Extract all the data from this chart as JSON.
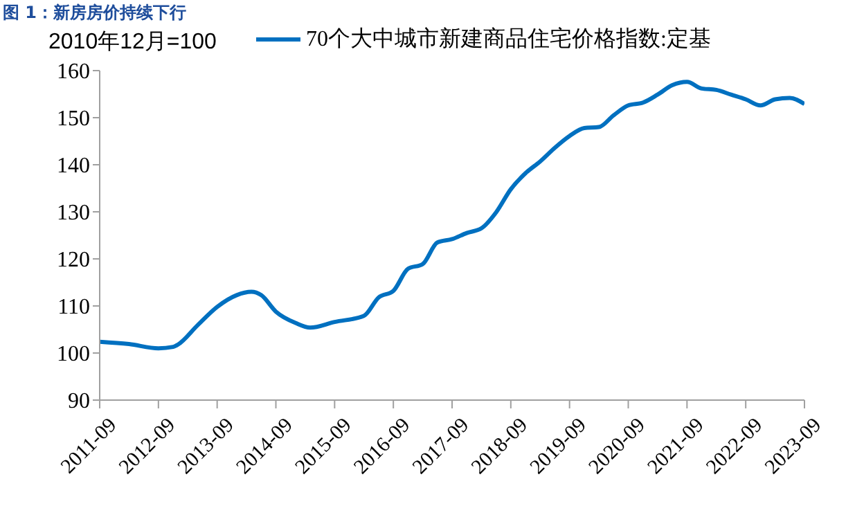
{
  "chart_data": {
    "type": "line",
    "title": "图 1：新房房价持续下行",
    "ylabel": "2010年12月=100",
    "x": [
      "2011-09",
      "2012-03",
      "2012-09",
      "2012-12",
      "2013-01",
      "2013-05",
      "2013-09",
      "2014-01",
      "2014-04",
      "2014-06",
      "2014-09",
      "2015-01",
      "2015-04",
      "2015-09",
      "2016-03",
      "2016-06",
      "2016-09",
      "2016-12",
      "2017-03",
      "2017-06",
      "2017-09",
      "2017-12",
      "2018-03",
      "2018-06",
      "2018-09",
      "2018-12",
      "2019-03",
      "2019-06",
      "2019-09",
      "2019-12",
      "2020-03",
      "2020-06",
      "2020-09",
      "2020-12",
      "2021-03",
      "2021-06",
      "2021-09",
      "2021-12",
      "2022-03",
      "2022-06",
      "2022-09",
      "2022-12",
      "2023-03",
      "2023-06",
      "2023-09"
    ],
    "series": [
      {
        "name": "70个大中城市新建商品住宅价格指数:定基",
        "color": "#0070c0",
        "values": [
          102.4,
          101.9,
          101.0,
          101.3,
          101.8,
          105.9,
          109.8,
          112.3,
          113.0,
          112.3,
          108.8,
          106.4,
          105.4,
          106.6,
          107.9,
          111.8,
          113.2,
          117.9,
          118.9,
          123.5,
          124.2,
          125.5,
          126.5,
          129.9,
          134.8,
          138.2,
          140.7,
          143.6,
          146.1,
          147.8,
          148.0,
          150.5,
          152.6,
          153.2,
          154.9,
          156.9,
          157.6,
          156.2,
          155.9,
          154.9,
          153.9,
          152.6,
          153.9,
          154.2,
          152.9
        ]
      }
    ],
    "xlim": [
      "2011-09",
      "2023-09"
    ],
    "xticks": [
      "2011-09",
      "2012-09",
      "2013-09",
      "2014-09",
      "2015-09",
      "2016-09",
      "2017-09",
      "2018-09",
      "2019-09",
      "2020-09",
      "2021-09",
      "2022-09",
      "2023-09"
    ],
    "ylim": [
      90,
      160
    ],
    "yticks": [
      90,
      100,
      110,
      120,
      130,
      140,
      150,
      160
    ],
    "grid": false,
    "legend": "top",
    "marker": "none",
    "line_style": "solid"
  }
}
